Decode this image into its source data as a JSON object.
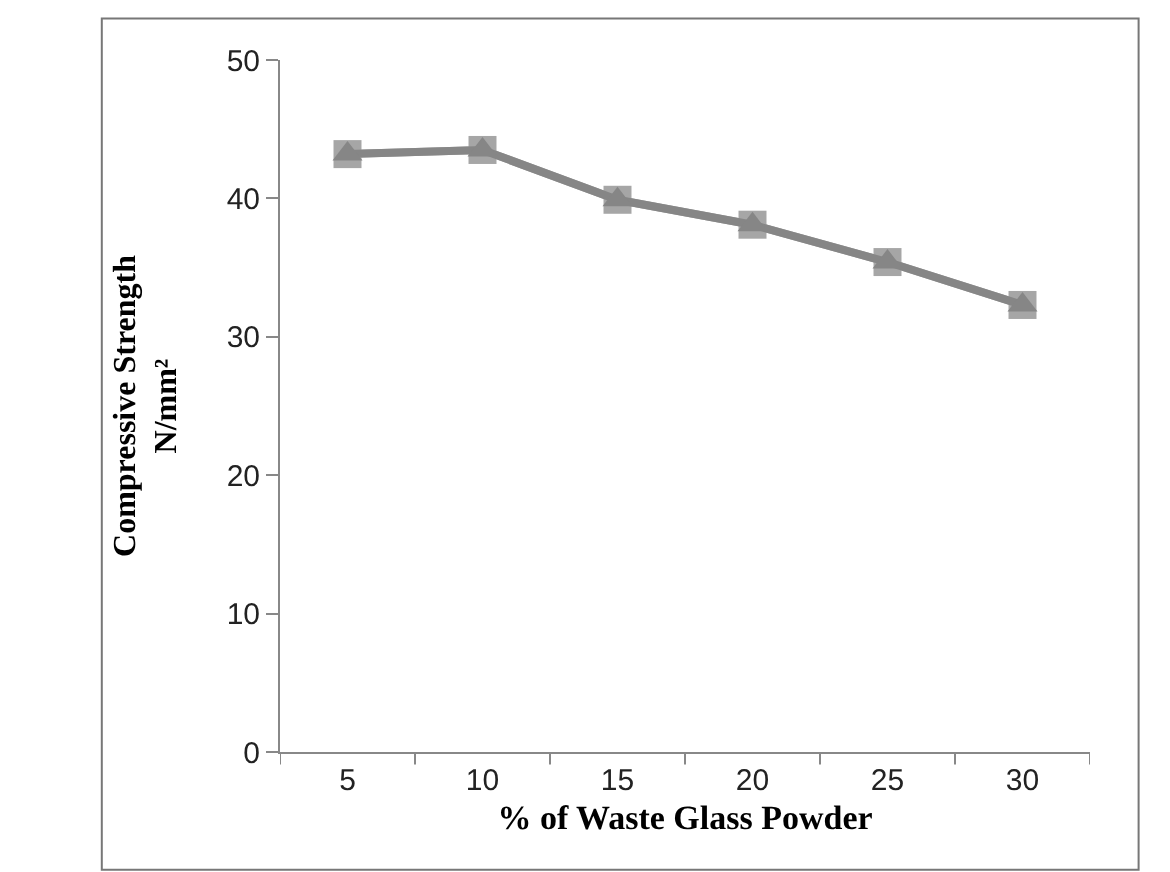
{
  "chart_data": {
    "type": "line",
    "xlabel": "% of Waste Glass Powder",
    "ylabel": "Compressive Strength\nN/mm²",
    "categories": [
      "5",
      "10",
      "15",
      "20",
      "25",
      "30"
    ],
    "series": [
      {
        "color": "#a6a6a6",
        "marker": "square",
        "line_style": "solid",
        "values": [
          43.2,
          43.5,
          39.9,
          38.1,
          35.4,
          32.3
        ]
      },
      {
        "color": "#868686",
        "marker": "triangle",
        "line_style": "solid",
        "values": [
          43.2,
          43.5,
          39.9,
          38.1,
          35.4,
          32.3
        ]
      }
    ],
    "ylim": [
      0,
      50
    ],
    "yticks": [
      0,
      10,
      20,
      30,
      40,
      50
    ]
  }
}
